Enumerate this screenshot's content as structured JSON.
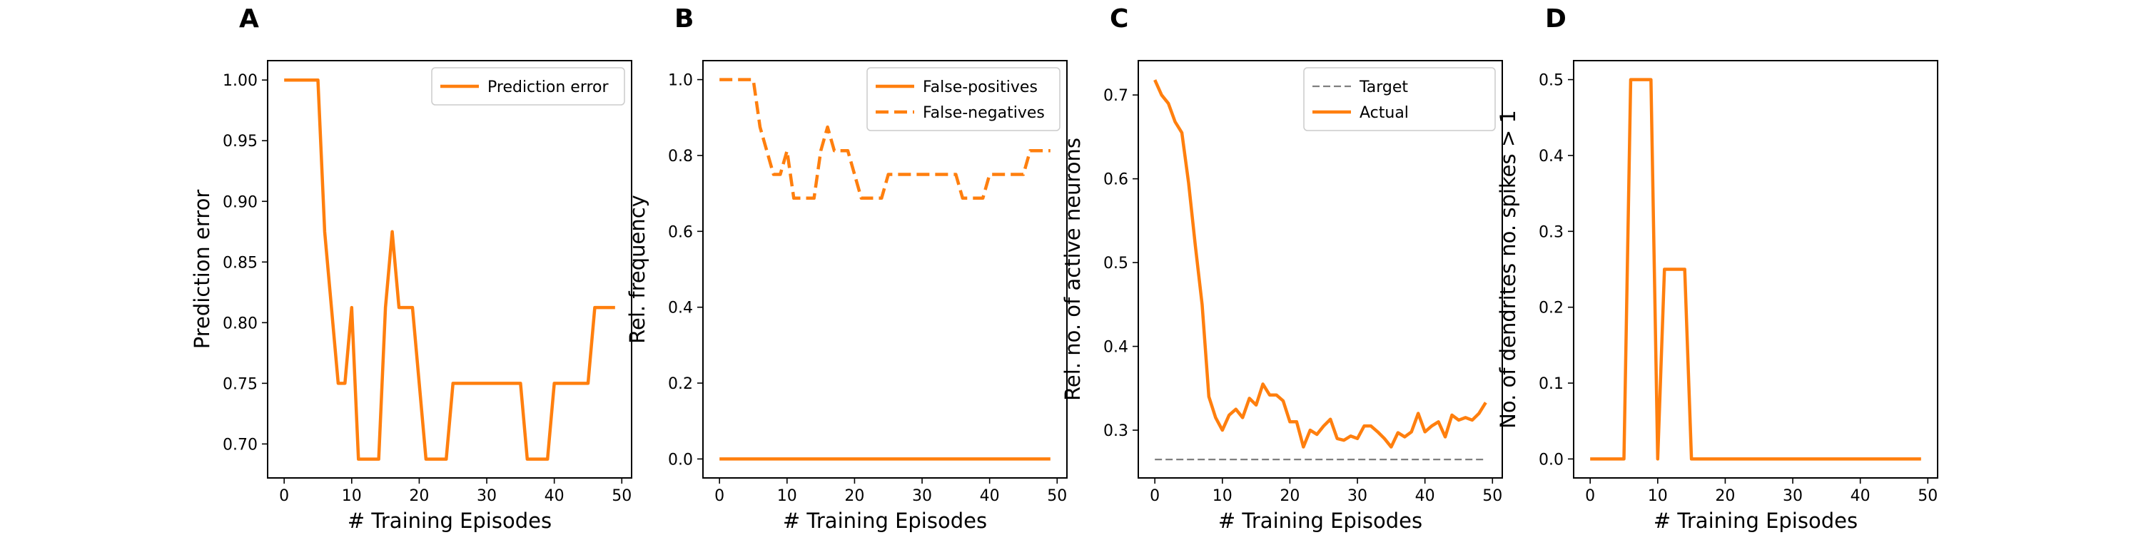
{
  "chart_data": [
    {
      "panel": "A",
      "type": "line",
      "xlabel": "# Training Episodes",
      "ylabel": "Prediction error",
      "xlim": [
        -2.45,
        51.45
      ],
      "ylim": [
        0.672,
        1.016
      ],
      "xticks": [
        0,
        10,
        20,
        30,
        40,
        50
      ],
      "yticks": [
        0.7,
        0.75,
        0.8,
        0.85,
        0.9,
        0.95,
        1.0
      ],
      "ytick_labels": [
        "0.70",
        "0.75",
        "0.80",
        "0.85",
        "0.90",
        "0.95",
        "1.00"
      ],
      "legend": "top-right",
      "series": [
        {
          "name": "Prediction error",
          "color": "#ff7f0e",
          "dash": "solid",
          "x": [
            0,
            1,
            2,
            3,
            4,
            5,
            6,
            7,
            8,
            9,
            10,
            11,
            12,
            13,
            14,
            15,
            16,
            17,
            18,
            19,
            20,
            21,
            22,
            23,
            24,
            25,
            26,
            27,
            28,
            29,
            30,
            31,
            32,
            33,
            34,
            35,
            36,
            37,
            38,
            39,
            40,
            41,
            42,
            43,
            44,
            45,
            46,
            47,
            48,
            49
          ],
          "y": [
            1.0,
            1.0,
            1.0,
            1.0,
            1.0,
            1.0,
            0.875,
            0.8125,
            0.75,
            0.75,
            0.8125,
            0.6875,
            0.6875,
            0.6875,
            0.6875,
            0.8125,
            0.875,
            0.8125,
            0.8125,
            0.8125,
            0.75,
            0.6875,
            0.6875,
            0.6875,
            0.6875,
            0.75,
            0.75,
            0.75,
            0.75,
            0.75,
            0.75,
            0.75,
            0.75,
            0.75,
            0.75,
            0.75,
            0.6875,
            0.6875,
            0.6875,
            0.6875,
            0.75,
            0.75,
            0.75,
            0.75,
            0.75,
            0.75,
            0.8125,
            0.8125,
            0.8125,
            0.8125
          ]
        }
      ]
    },
    {
      "panel": "B",
      "type": "line",
      "xlabel": "# Training Episodes",
      "ylabel": "Rel. frequency",
      "xlim": [
        -2.45,
        51.45
      ],
      "ylim": [
        -0.05,
        1.05
      ],
      "xticks": [
        0,
        10,
        20,
        30,
        40,
        50
      ],
      "yticks": [
        0.0,
        0.2,
        0.4,
        0.6,
        0.8,
        1.0
      ],
      "ytick_labels": [
        "0.0",
        "0.2",
        "0.4",
        "0.6",
        "0.8",
        "1.0"
      ],
      "legend": "top-right",
      "series": [
        {
          "name": "False-positives",
          "color": "#ff7f0e",
          "dash": "solid",
          "x": [
            0,
            49
          ],
          "y": [
            0.0,
            0.0
          ]
        },
        {
          "name": "False-negatives",
          "color": "#ff7f0e",
          "dash": "dashed",
          "x": [
            0,
            1,
            2,
            3,
            4,
            5,
            6,
            7,
            8,
            9,
            10,
            11,
            12,
            13,
            14,
            15,
            16,
            17,
            18,
            19,
            20,
            21,
            22,
            23,
            24,
            25,
            26,
            27,
            28,
            29,
            30,
            31,
            32,
            33,
            34,
            35,
            36,
            37,
            38,
            39,
            40,
            41,
            42,
            43,
            44,
            45,
            46,
            47,
            48,
            49
          ],
          "y": [
            1.0,
            1.0,
            1.0,
            1.0,
            1.0,
            1.0,
            0.875,
            0.8125,
            0.75,
            0.75,
            0.8125,
            0.6875,
            0.6875,
            0.6875,
            0.6875,
            0.8125,
            0.875,
            0.8125,
            0.8125,
            0.8125,
            0.75,
            0.6875,
            0.6875,
            0.6875,
            0.6875,
            0.75,
            0.75,
            0.75,
            0.75,
            0.75,
            0.75,
            0.75,
            0.75,
            0.75,
            0.75,
            0.75,
            0.6875,
            0.6875,
            0.6875,
            0.6875,
            0.75,
            0.75,
            0.75,
            0.75,
            0.75,
            0.75,
            0.8125,
            0.8125,
            0.8125,
            0.8125
          ]
        }
      ]
    },
    {
      "panel": "C",
      "type": "line",
      "xlabel": "# Training Episodes",
      "ylabel": "Rel. no. of active neurons",
      "xlim": [
        -2.45,
        51.45
      ],
      "ylim": [
        0.243,
        0.741
      ],
      "xticks": [
        0,
        10,
        20,
        30,
        40,
        50
      ],
      "yticks": [
        0.3,
        0.4,
        0.5,
        0.6,
        0.7
      ],
      "ytick_labels": [
        "0.3",
        "0.4",
        "0.5",
        "0.6",
        "0.7"
      ],
      "legend": "top-right",
      "series": [
        {
          "name": "Target",
          "color": "#7f7f7f",
          "dash": "dashed",
          "x": [
            0,
            49
          ],
          "y": [
            0.265,
            0.265
          ]
        },
        {
          "name": "Actual",
          "color": "#ff7f0e",
          "dash": "solid",
          "x": [
            0,
            1,
            2,
            3,
            4,
            5,
            6,
            7,
            8,
            9,
            10,
            11,
            12,
            13,
            14,
            15,
            16,
            17,
            18,
            19,
            20,
            21,
            22,
            23,
            24,
            25,
            26,
            27,
            28,
            29,
            30,
            31,
            32,
            33,
            34,
            35,
            36,
            37,
            38,
            39,
            40,
            41,
            42,
            43,
            44,
            45,
            46,
            47,
            48,
            49
          ],
          "y": [
            0.718,
            0.7,
            0.69,
            0.668,
            0.655,
            0.595,
            0.52,
            0.45,
            0.34,
            0.315,
            0.3,
            0.318,
            0.325,
            0.315,
            0.338,
            0.33,
            0.355,
            0.342,
            0.342,
            0.335,
            0.31,
            0.31,
            0.28,
            0.3,
            0.295,
            0.305,
            0.313,
            0.29,
            0.288,
            0.293,
            0.29,
            0.305,
            0.305,
            0.298,
            0.29,
            0.28,
            0.297,
            0.292,
            0.298,
            0.32,
            0.298,
            0.305,
            0.31,
            0.292,
            0.318,
            0.312,
            0.315,
            0.312,
            0.32,
            0.333
          ]
        }
      ]
    },
    {
      "panel": "D",
      "type": "line",
      "xlabel": "# Training Episodes",
      "ylabel": "No. of dendrites no. spikes > 1",
      "xlim": [
        -2.45,
        51.45
      ],
      "ylim": [
        -0.025,
        0.525
      ],
      "xticks": [
        0,
        10,
        20,
        30,
        40,
        50
      ],
      "yticks": [
        0.0,
        0.1,
        0.2,
        0.3,
        0.4,
        0.5
      ],
      "ytick_labels": [
        "0.0",
        "0.1",
        "0.2",
        "0.3",
        "0.4",
        "0.5"
      ],
      "legend": "none",
      "series": [
        {
          "color": "#ff7f0e",
          "dash": "solid",
          "x": [
            0,
            1,
            2,
            3,
            4,
            5,
            6,
            7,
            8,
            9,
            10,
            11,
            12,
            13,
            14,
            15,
            16,
            17,
            18,
            19,
            20,
            21,
            22,
            23,
            24,
            25,
            26,
            27,
            28,
            29,
            30,
            31,
            32,
            33,
            34,
            35,
            36,
            37,
            38,
            39,
            40,
            41,
            42,
            43,
            44,
            45,
            46,
            47,
            48,
            49
          ],
          "y": [
            0,
            0,
            0,
            0,
            0,
            0,
            0.5,
            0.5,
            0.5,
            0.5,
            0,
            0.25,
            0.25,
            0.25,
            0.25,
            0,
            0,
            0,
            0,
            0,
            0,
            0,
            0,
            0,
            0,
            0,
            0,
            0,
            0,
            0,
            0,
            0,
            0,
            0,
            0,
            0,
            0,
            0,
            0,
            0,
            0,
            0,
            0,
            0,
            0,
            0,
            0,
            0,
            0,
            0
          ]
        }
      ]
    }
  ]
}
